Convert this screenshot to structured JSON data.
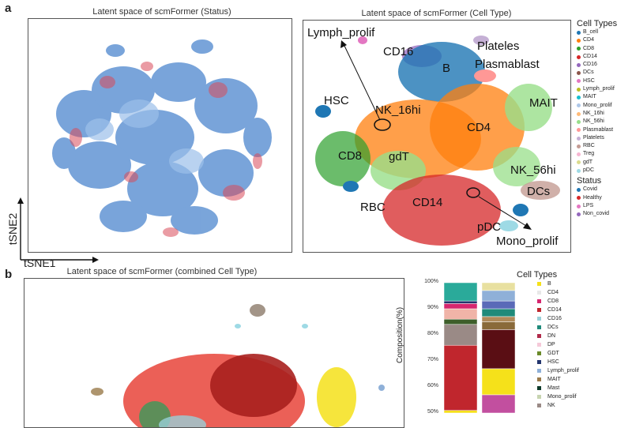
{
  "panel_a": {
    "letter": "a",
    "plot1_title": "Latent space of scmFormer (Status)",
    "plot2_title": "Latent space of scmFormer (Cell Type)",
    "axis_y": "tSNE2",
    "axis_x": "tSNE1",
    "cluster_labels": {
      "lymph_prolif": "Lymph_prolif",
      "cd16": "CD16",
      "plateles": "Plateles",
      "plasmablast": "Plasmablast",
      "b": "B",
      "hsc": "HSC",
      "nk16": "NK_16hi",
      "mait": "MAIT",
      "cd4": "CD4",
      "cd8": "CD8",
      "gdt": "gdT",
      "nk56": "NK_56hi",
      "dcs": "DCs",
      "rbc": "RBC",
      "cd14": "CD14",
      "pdc": "pDC",
      "mono_prolif": "Mono_prolif"
    },
    "legend_cell_title": "Cell Types",
    "legend_cell": [
      {
        "label": "B_cell",
        "color": "#1f77b4"
      },
      {
        "label": "CD4",
        "color": "#ff7f0e"
      },
      {
        "label": "CD8",
        "color": "#2ca02c"
      },
      {
        "label": "CD14",
        "color": "#d62728"
      },
      {
        "label": "CD16",
        "color": "#9467bd"
      },
      {
        "label": "DCs",
        "color": "#8c564b"
      },
      {
        "label": "HSC",
        "color": "#e377c2"
      },
      {
        "label": "Lymph_prolif",
        "color": "#bcbd22"
      },
      {
        "label": "MAIT",
        "color": "#17becf"
      },
      {
        "label": "Mono_prolif",
        "color": "#aec7e8"
      },
      {
        "label": "NK_16hi",
        "color": "#ffbb78"
      },
      {
        "label": "NK_56hi",
        "color": "#98df8a"
      },
      {
        "label": "Plasmablast",
        "color": "#ff9896"
      },
      {
        "label": "Platelets",
        "color": "#c5b0d5"
      },
      {
        "label": "RBC",
        "color": "#c49c94"
      },
      {
        "label": "Treg",
        "color": "#f7b6d2"
      },
      {
        "label": "gdT",
        "color": "#dbdb8d"
      },
      {
        "label": "pDC",
        "color": "#9edae5"
      }
    ],
    "legend_status_title": "Status",
    "legend_status": [
      {
        "label": "Covid",
        "color": "#1f77b4"
      },
      {
        "label": "Healthy",
        "color": "#d62728"
      },
      {
        "label": "LPS",
        "color": "#e377c2"
      },
      {
        "label": "Non_covid",
        "color": "#9467bd"
      }
    ]
  },
  "panel_b": {
    "letter": "b",
    "plot_title": "Latent space of scmFormer (combined Cell Type)",
    "y_axis_label": "Composition(%)",
    "legend_title": "Cell Types",
    "legend": [
      {
        "label": "B",
        "color": "#f5e11a"
      },
      {
        "label": "CD4",
        "color": "#e8e8e8"
      },
      {
        "label": "CD8",
        "color": "#d6266f"
      },
      {
        "label": "CD14",
        "color": "#c0262d"
      },
      {
        "label": "CD16",
        "color": "#9ad0d8"
      },
      {
        "label": "DCs",
        "color": "#1f8a7a"
      },
      {
        "label": "DN",
        "color": "#b02a4a"
      },
      {
        "label": "DP",
        "color": "#f5c9d9"
      },
      {
        "label": "GDT",
        "color": "#6a8a2a"
      },
      {
        "label": "HSC",
        "color": "#23356e"
      },
      {
        "label": "Lymph_prolif",
        "color": "#8fb0d8"
      },
      {
        "label": "MAIT",
        "color": "#9a7a4a"
      },
      {
        "label": "Mast",
        "color": "#0e3a2a"
      },
      {
        "label": "Mono_prolif",
        "color": "#c7d4b0"
      },
      {
        "label": "NK",
        "color": "#9a8a86"
      }
    ]
  },
  "chart_data": {
    "type": "bar",
    "ylabel": "Composition(%)",
    "yticks": [
      "100%",
      "90%",
      "80%",
      "70%",
      "60%",
      "50%"
    ],
    "ylim": [
      50,
      100
    ],
    "stacked": true,
    "bars": [
      {
        "segments": [
          {
            "category": "B",
            "top": 51,
            "bottom": 50,
            "color": "#f5e11a"
          },
          {
            "category": "CD14",
            "top": 76,
            "bottom": 51,
            "color": "#c0262d"
          },
          {
            "category": "NK",
            "top": 84,
            "bottom": 76,
            "color": "#9a8a86"
          },
          {
            "category": "Mast",
            "top": 86,
            "bottom": 84,
            "color": "#3e5e2a"
          },
          {
            "category": "DP",
            "top": 90,
            "bottom": 86,
            "color": "#f0b4a8"
          },
          {
            "category": "CD8",
            "top": 92,
            "bottom": 90,
            "color": "#d6266f"
          },
          {
            "category": "HSC",
            "top": 93,
            "bottom": 92,
            "color": "#23356e"
          },
          {
            "category": "DCs",
            "top": 100,
            "bottom": 93,
            "color": "#2aaa9a"
          }
        ]
      },
      {
        "segments": [
          {
            "category": "CD8",
            "top": 57,
            "bottom": 50,
            "color": "#c24f9f"
          },
          {
            "category": "B",
            "top": 67,
            "bottom": 57,
            "color": "#f5e11a"
          },
          {
            "category": "DN",
            "top": 82,
            "bottom": 67,
            "color": "#5a0e14"
          },
          {
            "category": "GDT",
            "top": 85,
            "bottom": 82,
            "color": "#8a6a3a"
          },
          {
            "category": "MAIT",
            "top": 87,
            "bottom": 85,
            "color": "#b08a5a"
          },
          {
            "category": "DCs",
            "top": 90,
            "bottom": 87,
            "color": "#1f8a7a"
          },
          {
            "category": "CD16",
            "top": 93,
            "bottom": 90,
            "color": "#5a6ab8"
          },
          {
            "category": "Lymph_prolif",
            "top": 97,
            "bottom": 93,
            "color": "#8fb0d8"
          },
          {
            "category": "CD4",
            "top": 100,
            "bottom": 97,
            "color": "#e8e0a0"
          }
        ]
      }
    ]
  }
}
